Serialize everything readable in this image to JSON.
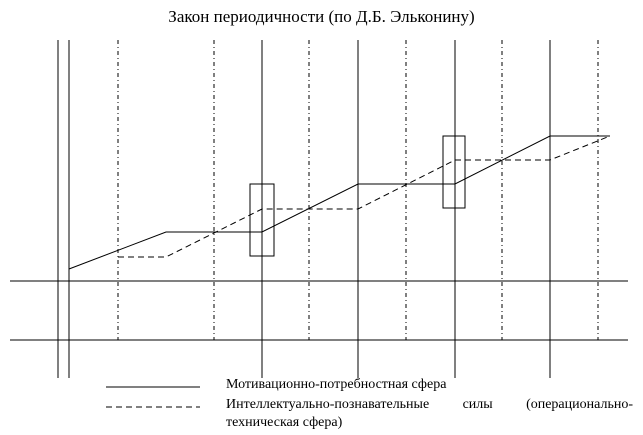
{
  "title": "Закон периодичности (по Д.Б. Эльконину)",
  "legend": [
    {
      "label": "Мотивационно-потребностная сфера"
    },
    {
      "label": "Интеллектуально-познавательные силы (операционально-техническая сфера)"
    }
  ]
}
